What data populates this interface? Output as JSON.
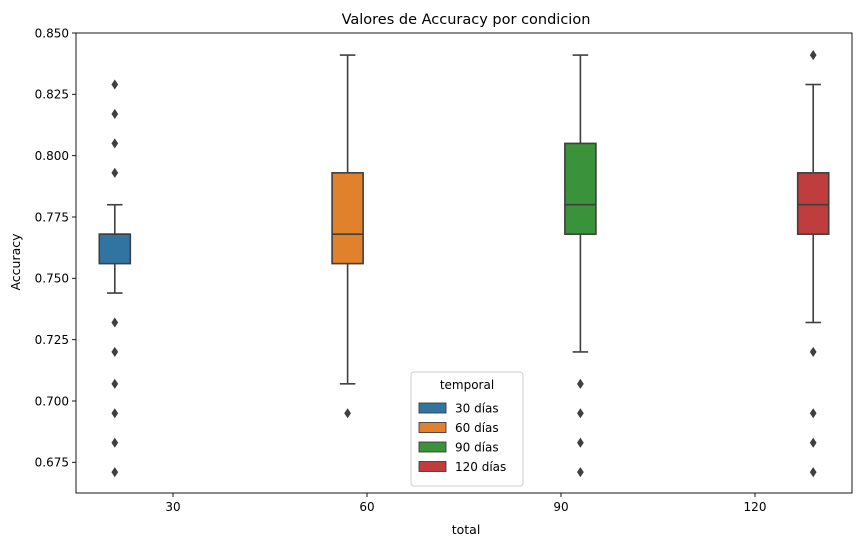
{
  "chart_data": {
    "type": "box",
    "title": "Valores de Accuracy por condicion",
    "xlabel": "total",
    "ylabel": "Accuracy",
    "categories": [
      "30",
      "60",
      "90",
      "120"
    ],
    "ylim": [
      0.6625,
      0.85
    ],
    "yticks": [
      "0.675",
      "0.700",
      "0.725",
      "0.750",
      "0.775",
      "0.800",
      "0.825",
      "0.850"
    ],
    "grid": false,
    "legend": {
      "title": "temporal",
      "position": "bottom-center"
    },
    "series": [
      {
        "name": "30 días",
        "color": "#3274a1",
        "category": "30",
        "whisker_low": 0.744,
        "q1": 0.756,
        "median": 0.768,
        "q3": 0.768,
        "whisker_high": 0.78,
        "outliers": [
          0.829,
          0.817,
          0.805,
          0.793,
          0.732,
          0.72,
          0.707,
          0.695,
          0.683,
          0.671
        ]
      },
      {
        "name": "60 días",
        "color": "#e1812c",
        "category": "60",
        "whisker_low": 0.707,
        "q1": 0.756,
        "median": 0.768,
        "q3": 0.793,
        "whisker_high": 0.841,
        "outliers": [
          0.695
        ]
      },
      {
        "name": "90 días",
        "color": "#3a923a",
        "category": "90",
        "whisker_low": 0.72,
        "q1": 0.768,
        "median": 0.78,
        "q3": 0.805,
        "whisker_high": 0.841,
        "outliers": [
          0.707,
          0.695,
          0.683,
          0.671
        ]
      },
      {
        "name": "120 días",
        "color": "#c03d3e",
        "category": "120",
        "whisker_low": 0.732,
        "q1": 0.768,
        "median": 0.78,
        "q3": 0.793,
        "whisker_high": 0.829,
        "outliers": [
          0.841,
          0.72,
          0.695,
          0.683,
          0.671
        ]
      }
    ]
  }
}
